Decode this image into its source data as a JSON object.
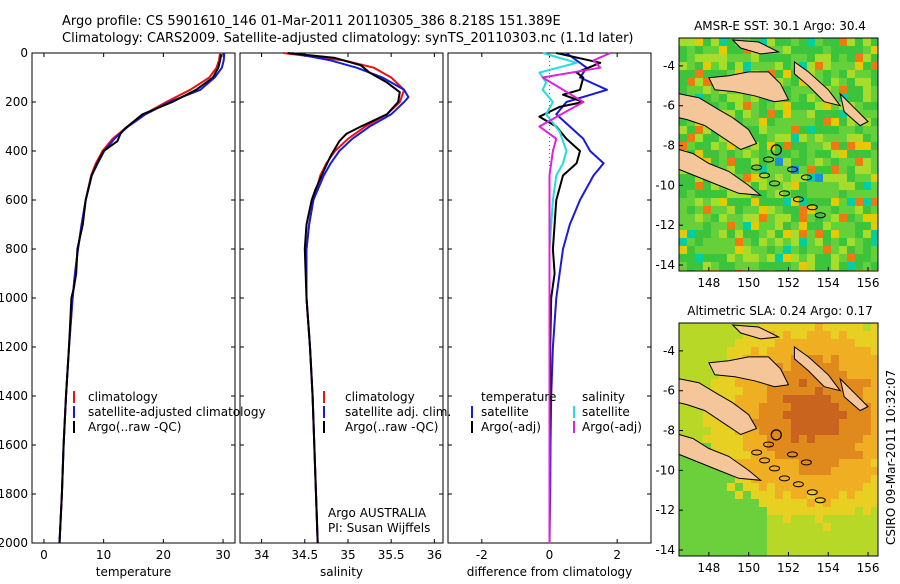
{
  "header": {
    "line1": "Argo profile: CS 5901610_146 01-Mar-2011 20110305_386 8.218S 151.389E",
    "line2": "Climatology: CARS2009. Satellite-adjusted climatology: synTS_20110303.nc (1.1d later)"
  },
  "footer": {
    "owner": "Argo AUSTRALIA",
    "pi": "PI: Susan Wijffels",
    "stamp": "CSIRO 09-Mar-2011 10:32:07"
  },
  "colors": {
    "climatology": "#ee1111",
    "satellite": "#1a1add",
    "argo": "#000000",
    "sal_satellite": "#22dddd",
    "sal_argo": "#dd22dd",
    "land": "#f4c69a"
  },
  "chart_data": [
    {
      "id": "temperature",
      "type": "line",
      "xlabel": "temperature",
      "ylabel": "",
      "xlim": [
        -2,
        32
      ],
      "ylim": [
        2000,
        0
      ],
      "xticks": [
        0,
        10,
        20,
        30
      ],
      "yticks": [
        0,
        200,
        400,
        600,
        800,
        1000,
        1200,
        1400,
        1600,
        1800,
        2000
      ],
      "legend": [
        "climatology",
        "satellite-adjusted climatology",
        "Argo(..raw -QC)"
      ],
      "series": [
        {
          "name": "climatology",
          "color": "climatology",
          "points": [
            [
              29.5,
              0
            ],
            [
              29.3,
              30
            ],
            [
              28.9,
              60
            ],
            [
              27.7,
              100
            ],
            [
              24.5,
              150
            ],
            [
              20.5,
              200
            ],
            [
              16.8,
              250
            ],
            [
              14,
              300
            ],
            [
              11.5,
              350
            ],
            [
              9.8,
              400
            ],
            [
              8.7,
              450
            ],
            [
              7.9,
              500
            ],
            [
              7,
              600
            ],
            [
              6.3,
              700
            ],
            [
              5.7,
              800
            ],
            [
              5.2,
              900
            ],
            [
              4.8,
              1000
            ],
            [
              4.2,
              1200
            ],
            [
              3.7,
              1400
            ],
            [
              3.3,
              1600
            ],
            [
              3,
              1800
            ],
            [
              2.6,
              2000
            ]
          ]
        },
        {
          "name": "satellite-adjusted climatology",
          "color": "satellite",
          "points": [
            [
              30.2,
              0
            ],
            [
              30.1,
              30
            ],
            [
              29.8,
              60
            ],
            [
              28.6,
              100
            ],
            [
              26.2,
              150
            ],
            [
              21,
              200
            ],
            [
              17,
              250
            ],
            [
              14.1,
              300
            ],
            [
              11.8,
              350
            ],
            [
              10.1,
              400
            ],
            [
              9,
              450
            ],
            [
              8,
              500
            ],
            [
              7,
              600
            ],
            [
              6.3,
              700
            ],
            [
              5.7,
              800
            ],
            [
              5.2,
              900
            ],
            [
              4.8,
              1000
            ],
            [
              4.2,
              1200
            ],
            [
              3.7,
              1400
            ],
            [
              3.3,
              1600
            ],
            [
              3,
              1800
            ],
            [
              2.6,
              2000
            ]
          ]
        },
        {
          "name": "Argo(..raw -QC)",
          "color": "argo",
          "points": [
            [
              29.7,
              5
            ],
            [
              29.5,
              30
            ],
            [
              29.2,
              60
            ],
            [
              28.3,
              100
            ],
            [
              25.5,
              150
            ],
            [
              21.5,
              200
            ],
            [
              16.5,
              250
            ],
            [
              13.5,
              310
            ],
            [
              12.8,
              330
            ],
            [
              12.3,
              360
            ],
            [
              10,
              400
            ],
            [
              8.9,
              450
            ],
            [
              8,
              500
            ],
            [
              7,
              600
            ],
            [
              6.5,
              700
            ],
            [
              5.6,
              800
            ],
            [
              5.4,
              900
            ],
            [
              5,
              960
            ],
            [
              4.6,
              1000
            ],
            [
              4.2,
              1200
            ],
            [
              3.7,
              1400
            ],
            [
              3.3,
              1600
            ],
            [
              3,
              1800
            ],
            [
              2.6,
              2000
            ]
          ]
        }
      ]
    },
    {
      "id": "salinity",
      "type": "line",
      "xlabel": "salinity",
      "ylabel": "",
      "xlim": [
        33.75,
        36.1
      ],
      "ylim": [
        2000,
        0
      ],
      "xticks": [
        34,
        34.5,
        35,
        35.5,
        36
      ],
      "yticks": [
        0,
        200,
        400,
        600,
        800,
        1000,
        1200,
        1400,
        1600,
        1800,
        2000
      ],
      "legend": [
        "climatology",
        "satellite adj. clim.",
        "Argo(..raw -QC)"
      ],
      "series": [
        {
          "name": "climatology",
          "color": "climatology",
          "points": [
            [
              34.25,
              0
            ],
            [
              34.95,
              30
            ],
            [
              35.3,
              60
            ],
            [
              35.5,
              100
            ],
            [
              35.65,
              150
            ],
            [
              35.6,
              200
            ],
            [
              35.45,
              250
            ],
            [
              35.2,
              300
            ],
            [
              35,
              350
            ],
            [
              34.85,
              400
            ],
            [
              34.75,
              450
            ],
            [
              34.68,
              500
            ],
            [
              34.6,
              600
            ],
            [
              34.55,
              700
            ],
            [
              34.52,
              800
            ],
            [
              34.52,
              1000
            ],
            [
              34.56,
              1200
            ],
            [
              34.59,
              1400
            ],
            [
              34.61,
              1600
            ],
            [
              34.63,
              1800
            ],
            [
              34.65,
              2000
            ]
          ]
        },
        {
          "name": "satellite adj. clim.",
          "color": "satellite",
          "points": [
            [
              34.35,
              0
            ],
            [
              34.8,
              30
            ],
            [
              35.1,
              60
            ],
            [
              35.4,
              100
            ],
            [
              35.65,
              150
            ],
            [
              35.7,
              180
            ],
            [
              35.65,
              200
            ],
            [
              35.5,
              250
            ],
            [
              35.25,
              300
            ],
            [
              35.05,
              350
            ],
            [
              34.9,
              400
            ],
            [
              34.8,
              450
            ],
            [
              34.72,
              500
            ],
            [
              34.6,
              600
            ],
            [
              34.55,
              700
            ],
            [
              34.52,
              800
            ],
            [
              34.52,
              1000
            ],
            [
              34.56,
              1200
            ],
            [
              34.59,
              1400
            ],
            [
              34.61,
              1600
            ],
            [
              34.63,
              1800
            ],
            [
              34.65,
              2000
            ]
          ]
        },
        {
          "name": "Argo(..raw -QC)",
          "color": "argo",
          "points": [
            [
              34.3,
              0
            ],
            [
              34.85,
              20
            ],
            [
              35.15,
              50
            ],
            [
              35.25,
              80
            ],
            [
              35.45,
              120
            ],
            [
              35.6,
              160
            ],
            [
              35.58,
              200
            ],
            [
              35.45,
              250
            ],
            [
              35.15,
              300
            ],
            [
              34.98,
              330
            ],
            [
              34.9,
              360
            ],
            [
              34.8,
              420
            ],
            [
              34.72,
              480
            ],
            [
              34.62,
              560
            ],
            [
              34.58,
              600
            ],
            [
              34.52,
              700
            ],
            [
              34.5,
              800
            ],
            [
              34.52,
              1000
            ],
            [
              34.56,
              1200
            ],
            [
              34.59,
              1400
            ],
            [
              34.61,
              1600
            ],
            [
              34.63,
              1800
            ],
            [
              34.65,
              2000
            ]
          ]
        }
      ]
    },
    {
      "id": "difference",
      "type": "line",
      "xlabel": "difference from climatology",
      "ylabel": "",
      "xlim": [
        -3,
        3
      ],
      "ylim": [
        2000,
        0
      ],
      "xticks": [
        -2,
        0,
        2
      ],
      "yticks": [
        0,
        200,
        400,
        600,
        800,
        1000,
        1200,
        1400,
        1600,
        1800,
        2000
      ],
      "legend": [
        "temperature",
        "satellite",
        "Argo(-adj)",
        "salinity",
        "satellite",
        "Argo(-adj)"
      ],
      "series": [
        {
          "name": "satellite",
          "group": "temperature",
          "color": "satellite",
          "points": [
            [
              0.5,
              0
            ],
            [
              0.8,
              30
            ],
            [
              1.1,
              60
            ],
            [
              0.9,
              100
            ],
            [
              1.7,
              150
            ],
            [
              0.5,
              200
            ],
            [
              0.2,
              250
            ],
            [
              0.6,
              300
            ],
            [
              1,
              350
            ],
            [
              1.2,
              400
            ],
            [
              1.6,
              450
            ],
            [
              1.3,
              500
            ],
            [
              0.9,
              600
            ],
            [
              0.6,
              700
            ],
            [
              0.4,
              800
            ],
            [
              0.3,
              900
            ],
            [
              0.2,
              1000
            ],
            [
              0.1,
              1200
            ],
            [
              0.05,
              1400
            ],
            [
              0.03,
              1600
            ],
            [
              0.02,
              1800
            ],
            [
              0,
              2000
            ]
          ]
        },
        {
          "name": "Argo(-adj)",
          "group": "temperature",
          "color": "argo",
          "points": [
            [
              0.2,
              0
            ],
            [
              1.5,
              40
            ],
            [
              0.8,
              80
            ],
            [
              1,
              100
            ],
            [
              0.9,
              150
            ],
            [
              0.4,
              170
            ],
            [
              1,
              200
            ],
            [
              0.3,
              220
            ],
            [
              -0.3,
              260
            ],
            [
              0.2,
              300
            ],
            [
              0.5,
              350
            ],
            [
              0.9,
              400
            ],
            [
              0.8,
              450
            ],
            [
              0.4,
              500
            ],
            [
              0.2,
              600
            ],
            [
              0.15,
              700
            ],
            [
              0.1,
              800
            ],
            [
              0.15,
              900
            ],
            [
              0.05,
              1000
            ],
            [
              0.02,
              1200
            ],
            [
              0.02,
              1400
            ],
            [
              0,
              1600
            ],
            [
              0,
              1800
            ],
            [
              0,
              2000
            ]
          ]
        },
        {
          "name": "satellite",
          "group": "salinity",
          "color": "sal_satellite",
          "points": [
            [
              -0.2,
              0
            ],
            [
              0.8,
              40
            ],
            [
              -0.3,
              80
            ],
            [
              -0.1,
              120
            ],
            [
              -0.2,
              150
            ],
            [
              0.1,
              200
            ],
            [
              -0.1,
              250
            ],
            [
              0.3,
              320
            ],
            [
              0.5,
              400
            ],
            [
              0.4,
              450
            ],
            [
              0.2,
              500
            ],
            [
              0.1,
              600
            ],
            [
              0.05,
              700
            ],
            [
              0,
              800
            ],
            [
              0,
              1000
            ],
            [
              0,
              1200
            ],
            [
              0,
              1400
            ],
            [
              0,
              1600
            ],
            [
              0,
              1800
            ],
            [
              0,
              2000
            ]
          ]
        },
        {
          "name": "Argo(-adj)",
          "group": "salinity",
          "color": "sal_argo",
          "points": [
            [
              1.8,
              0
            ],
            [
              1.3,
              30
            ],
            [
              1.5,
              60
            ],
            [
              -0.2,
              100
            ],
            [
              1,
              200
            ],
            [
              -0.3,
              300
            ],
            [
              0.2,
              350
            ],
            [
              0.1,
              400
            ],
            [
              0,
              500
            ],
            [
              0,
              800
            ],
            [
              0,
              1000
            ],
            [
              0,
              1200
            ],
            [
              0,
              1400
            ],
            [
              0,
              1600
            ],
            [
              0,
              1800
            ],
            [
              0,
              2000
            ]
          ]
        }
      ]
    },
    {
      "id": "sst-map",
      "type": "heatmap",
      "title": "AMSR-E SST: 30.1 Argo: 30.4",
      "xlim": [
        146.5,
        156.5
      ],
      "ylim": [
        -14.3,
        -2.6
      ],
      "xticks": [
        148,
        150,
        152,
        154,
        156
      ],
      "yticks": [
        -4,
        -6,
        -8,
        -10,
        -12,
        -14
      ],
      "argo_position": [
        151.389,
        -8.218
      ]
    },
    {
      "id": "sla-map",
      "type": "heatmap",
      "title": "Altimetric SLA: 0.24 Argo: 0.17",
      "xlim": [
        146.5,
        156.5
      ],
      "ylim": [
        -14.3,
        -2.6
      ],
      "xticks": [
        148,
        150,
        152,
        154,
        156
      ],
      "yticks": [
        -4,
        -6,
        -8,
        -10,
        -12,
        -14
      ],
      "argo_position": [
        151.389,
        -8.218
      ]
    }
  ]
}
